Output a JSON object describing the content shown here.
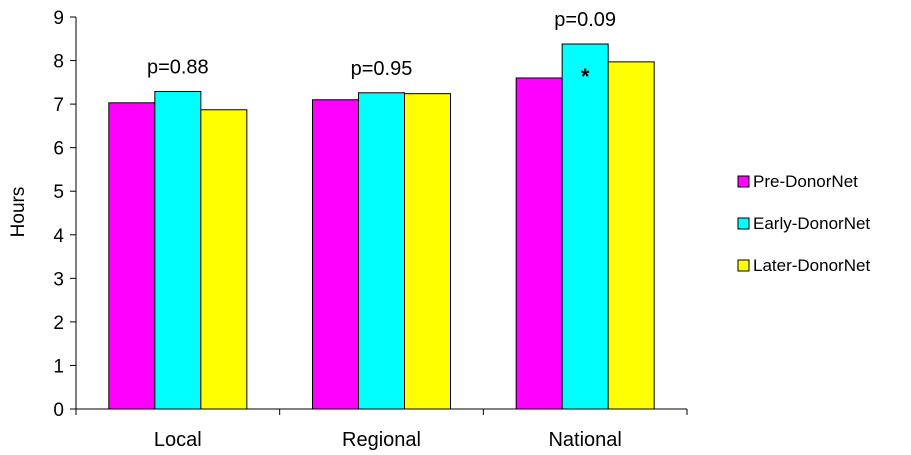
{
  "chart_data": {
    "type": "bar",
    "categories": [
      "Local",
      "Regional",
      "National"
    ],
    "series": [
      {
        "name": "Pre-DonorNet",
        "color": "#FF00FF",
        "values": [
          7.03,
          7.1,
          7.6
        ]
      },
      {
        "name": "Early-DonorNet",
        "color": "#00FFFF",
        "values": [
          7.29,
          7.26,
          8.38
        ]
      },
      {
        "name": "Later-DonorNet",
        "color": "#FFFF00",
        "values": [
          6.87,
          7.24,
          7.97
        ]
      }
    ],
    "ylabel": "Hours",
    "ylim": [
      0,
      9
    ],
    "yticks": [
      "0",
      "1",
      "2",
      "3",
      "4",
      "5",
      "6",
      "7",
      "8",
      "9"
    ],
    "p_values": [
      "p=0.88",
      "p=0.95",
      "p=0.09"
    ],
    "annotations": [
      {
        "category": "National",
        "series": "Early-DonorNet",
        "text": "*"
      }
    ],
    "legend": "right",
    "grid": false
  }
}
